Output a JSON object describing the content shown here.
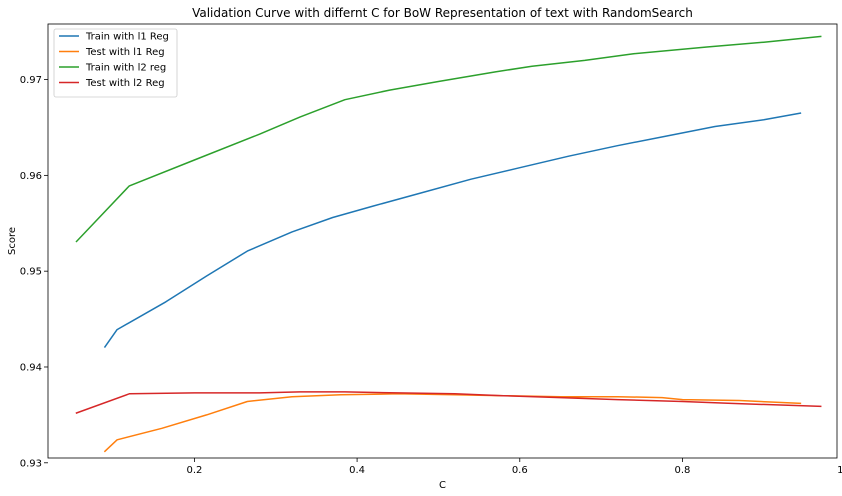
{
  "chart_data": {
    "type": "line",
    "title": "Validation Curve with differnt C for BoW Representation of text with RandomSearch",
    "xlabel": "C",
    "ylabel": "Score",
    "xlim": [
      0.02,
      0.99
    ],
    "ylim": [
      0.9305,
      0.9758
    ],
    "xticks": [
      0.2,
      0.4,
      0.6,
      0.8,
      1.0
    ],
    "xtick_labels": [
      "0.2",
      "0.4",
      "0.6",
      "0.8",
      "1.0"
    ],
    "yticks": [
      0.93,
      0.94,
      0.95,
      0.96,
      0.97
    ],
    "ytick_labels": [
      "0.93",
      "0.94",
      "0.95",
      "0.96",
      "0.97"
    ],
    "grid": false,
    "legend": "top-left",
    "series": [
      {
        "name": "Train with l1 Reg",
        "color": "#1f77b4",
        "x": [
          0.09,
          0.105,
          0.165,
          0.215,
          0.265,
          0.32,
          0.37,
          0.42,
          0.48,
          0.54,
          0.6,
          0.66,
          0.72,
          0.78,
          0.84,
          0.9,
          0.945
        ],
        "y": [
          0.9421,
          0.9439,
          0.9468,
          0.9495,
          0.9521,
          0.9541,
          0.9556,
          0.9568,
          0.9582,
          0.9596,
          0.9608,
          0.962,
          0.9631,
          0.9641,
          0.9651,
          0.9658,
          0.9665
        ]
      },
      {
        "name": "Test with l1 Reg",
        "color": "#ff7f0e",
        "x": [
          0.09,
          0.105,
          0.16,
          0.215,
          0.265,
          0.32,
          0.38,
          0.45,
          0.52,
          0.58,
          0.65,
          0.72,
          0.775,
          0.8,
          0.87,
          0.945
        ],
        "y": [
          0.9312,
          0.9324,
          0.9336,
          0.935,
          0.9364,
          0.9369,
          0.9371,
          0.9372,
          0.9371,
          0.937,
          0.9369,
          0.9369,
          0.9368,
          0.9366,
          0.9365,
          0.9362
        ]
      },
      {
        "name": "Train with l2 reg",
        "color": "#2ca02c",
        "x": [
          0.055,
          0.12,
          0.2,
          0.28,
          0.33,
          0.385,
          0.44,
          0.5,
          0.57,
          0.615,
          0.68,
          0.74,
          0.83,
          0.9,
          0.97
        ],
        "y": [
          0.9531,
          0.9589,
          0.9616,
          0.9643,
          0.9661,
          0.9679,
          0.9689,
          0.9698,
          0.9708,
          0.9714,
          0.972,
          0.9727,
          0.9734,
          0.9739,
          0.9745
        ]
      },
      {
        "name": "Test with l2 Reg",
        "color": "#d62728",
        "x": [
          0.055,
          0.12,
          0.2,
          0.28,
          0.33,
          0.385,
          0.45,
          0.52,
          0.58,
          0.65,
          0.72,
          0.8,
          0.86,
          0.93,
          0.97
        ],
        "y": [
          0.9352,
          0.9372,
          0.9373,
          0.9373,
          0.9374,
          0.9374,
          0.9373,
          0.9372,
          0.937,
          0.9368,
          0.9366,
          0.9364,
          0.9362,
          0.936,
          0.9359
        ]
      }
    ]
  }
}
